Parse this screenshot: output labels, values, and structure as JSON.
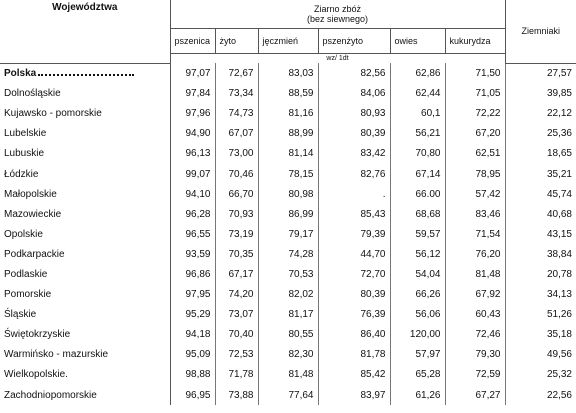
{
  "header": {
    "region_label": "Województwa",
    "group_label": [
      "Ziarno zbóż",
      "(bez siewnego)"
    ],
    "columns": [
      "pszenica",
      "żyto",
      "jęczmień",
      "pszenżyto",
      "owies",
      "kukurydza"
    ],
    "potatoes": "Ziemniaki",
    "unit": "wz/ 1dt"
  },
  "table": {
    "rows": [
      [
        "Polska",
        "97,07",
        "72,67",
        "83,03",
        "82,56",
        "62,86",
        "71,50",
        "27,57"
      ],
      [
        "Dolnośląskie",
        "97,84",
        "73,34",
        "88,59",
        "84,06",
        "62,44",
        "71,05",
        "39,85"
      ],
      [
        "Kujawsko - pomorskie",
        "97,96",
        "74,73",
        "81,16",
        "80,93",
        "60,1",
        "72,22",
        "22,12"
      ],
      [
        "Lubelskie",
        "94,90",
        "67,07",
        "88,99",
        "80,39",
        "56,21",
        "67,20",
        "25,36"
      ],
      [
        "Lubuskie",
        "96,13",
        "73,00",
        "81,14",
        "83,42",
        "70,80",
        "62,51",
        "18,65"
      ],
      [
        "Łódzkie",
        "99,07",
        "70,46",
        "78,15",
        "82,76",
        "67,14",
        "78,95",
        "35,21"
      ],
      [
        "Małopolskie",
        "94,10",
        "66,70",
        "80,98",
        ".",
        "66.00",
        "57,42",
        "45,74"
      ],
      [
        "Mazowieckie",
        "96,28",
        "70,93",
        "86,99",
        "85,43",
        "68,68",
        "83,46",
        "40,68"
      ],
      [
        "Opolskie",
        "96,55",
        "73,19",
        "79,17",
        "79,39",
        "59,57",
        "71,54",
        "43,15"
      ],
      [
        "Podkarpackie",
        "93,59",
        "70,35",
        "74,28",
        "44,70",
        "56,12",
        "76,20",
        "38,84"
      ],
      [
        "Podlaskie",
        "96,86",
        "67,17",
        "70,53",
        "72,70",
        "54,04",
        "81,48",
        "20,78"
      ],
      [
        "Pomorskie",
        "97,95",
        "74,20",
        "82,02",
        "80,39",
        "66,26",
        "67,92",
        "34,13"
      ],
      [
        "Śląskie",
        "95,29",
        "73,07",
        "81,17",
        "76,39",
        "56,06",
        "60,43",
        "51,26"
      ],
      [
        "Świętokrzyskie",
        "94,18",
        "70,40",
        "80,55",
        "86,40",
        "120,00",
        "72,46",
        "35,18"
      ],
      [
        "Warmińsko - mazurskie",
        "95,09",
        "72,53",
        "82,30",
        "81,78",
        "57,97",
        "79,30",
        "49,56"
      ],
      [
        "Wielkopolskie.",
        "98,88",
        "71,78",
        "81,48",
        "85,42",
        "65,28",
        "72,59",
        "25,32"
      ],
      [
        "Zachodniopomorskie",
        "96,95",
        "73,88",
        "77,64",
        "83,97",
        "61,26",
        "67,27",
        "22,56"
      ]
    ]
  }
}
